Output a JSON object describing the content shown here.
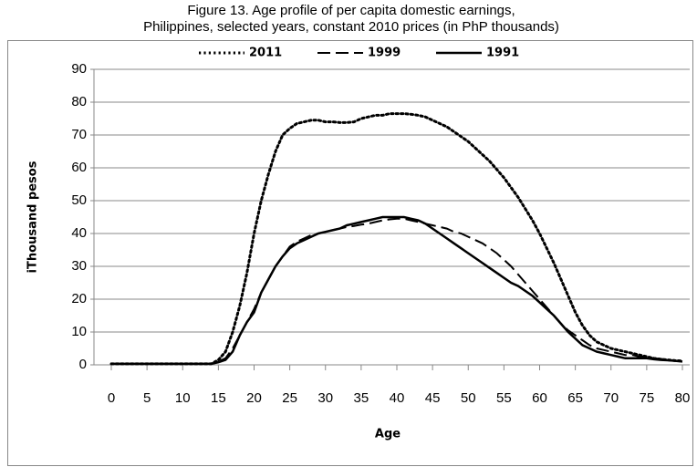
{
  "chart_data": {
    "type": "line",
    "title": [
      "Figure 13. Age profile of per capita domestic earnings,",
      "Philippines, selected years, constant 2010 prices (in PhP thousands)"
    ],
    "x_label": "Age",
    "y_label": "iThousand  pesos",
    "x": [
      0,
      1,
      2,
      3,
      4,
      5,
      6,
      7,
      8,
      9,
      10,
      11,
      12,
      13,
      14,
      15,
      16,
      17,
      18,
      19,
      20,
      21,
      22,
      23,
      24,
      25,
      26,
      27,
      28,
      29,
      30,
      31,
      32,
      33,
      34,
      35,
      36,
      37,
      38,
      39,
      40,
      41,
      42,
      43,
      44,
      45,
      46,
      47,
      48,
      49,
      50,
      51,
      52,
      53,
      54,
      55,
      56,
      57,
      58,
      59,
      60,
      61,
      62,
      63,
      64,
      65,
      66,
      67,
      68,
      69,
      70,
      71,
      72,
      73,
      74,
      75,
      76,
      77,
      78,
      79,
      80
    ],
    "series": [
      {
        "name": "2011",
        "color": "#000000",
        "dash": "dotted",
        "values": [
          0.3,
          0.3,
          0.3,
          0.3,
          0.3,
          0.3,
          0.3,
          0.3,
          0.3,
          0.3,
          0.3,
          0.3,
          0.3,
          0.3,
          0.3,
          1.5,
          4,
          10,
          18,
          28,
          40,
          50,
          58,
          65,
          70,
          72,
          73.5,
          74,
          74.5,
          74.5,
          74,
          74,
          73.8,
          73.8,
          74,
          75,
          75.5,
          76,
          76,
          76.5,
          76.5,
          76.5,
          76.3,
          76,
          75.5,
          74.5,
          73.5,
          72.5,
          71,
          69.5,
          68,
          66,
          64,
          62,
          59.5,
          57,
          54,
          51,
          47.5,
          44,
          40,
          35.5,
          31,
          26,
          21,
          16,
          12,
          9,
          7,
          6,
          5,
          4.5,
          4,
          3.5,
          3,
          2.5,
          2,
          1.7,
          1.5,
          1.3,
          1.2
        ]
      },
      {
        "name": "1999",
        "color": "#000000",
        "dash": "dashed",
        "values": [
          0.3,
          0.3,
          0.3,
          0.3,
          0.3,
          0.3,
          0.3,
          0.3,
          0.3,
          0.3,
          0.3,
          0.3,
          0.3,
          0.3,
          0.3,
          1,
          2,
          5,
          9,
          13,
          17,
          22,
          26,
          30,
          33,
          36,
          37.5,
          38.5,
          39.5,
          40,
          40.5,
          41,
          41.5,
          42,
          42.3,
          42.7,
          43,
          43.5,
          44,
          44.3,
          44.5,
          44.5,
          44,
          43.5,
          43,
          42.5,
          42,
          41.5,
          40.5,
          40,
          39,
          38,
          37,
          35.5,
          34,
          32,
          30,
          27.5,
          25,
          22.5,
          20,
          17.5,
          15,
          12.5,
          10.5,
          9,
          7.5,
          6,
          5,
          4.5,
          4,
          3.5,
          3,
          3,
          2.5,
          2.5,
          2,
          1.8,
          1.5,
          1.3,
          1.2
        ]
      },
      {
        "name": "1991",
        "color": "#000000",
        "dash": "solid",
        "values": [
          0.3,
          0.3,
          0.3,
          0.3,
          0.3,
          0.3,
          0.3,
          0.3,
          0.3,
          0.3,
          0.3,
          0.3,
          0.3,
          0.3,
          0.3,
          0.8,
          1.5,
          4,
          9,
          13,
          16,
          22,
          26,
          30,
          33,
          35.5,
          37,
          38,
          39,
          40,
          40.5,
          41,
          41.5,
          42.5,
          43,
          43.5,
          44,
          44.5,
          45,
          45,
          45,
          45,
          44.5,
          44,
          43,
          41.5,
          40,
          38.5,
          37,
          35.5,
          34,
          32.5,
          31,
          29.5,
          28,
          26.5,
          25,
          24,
          22.5,
          21,
          19,
          17,
          15,
          12.5,
          10,
          8,
          6,
          5,
          4,
          3.5,
          3,
          2.5,
          2,
          2,
          2,
          2,
          1.7,
          1.5,
          1.4,
          1.2,
          1
        ]
      }
    ],
    "xlim": [
      0,
      80
    ],
    "xticks": [
      0,
      5,
      10,
      15,
      20,
      25,
      30,
      35,
      40,
      45,
      50,
      55,
      60,
      65,
      70,
      75,
      80
    ],
    "ylim": [
      0,
      90
    ],
    "yticks": [
      0,
      10,
      20,
      30,
      40,
      50,
      60,
      70,
      80,
      90
    ],
    "grid": true,
    "legend": "top"
  }
}
